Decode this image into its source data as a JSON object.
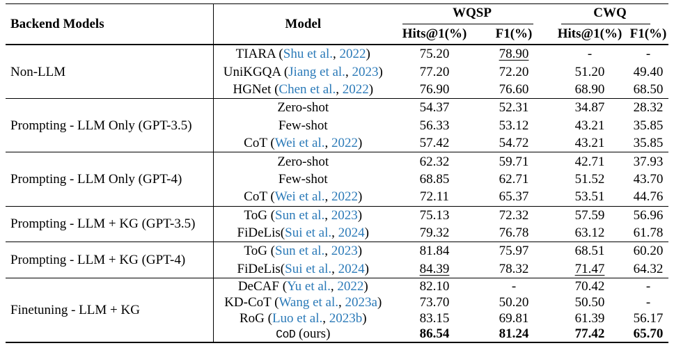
{
  "colors": {
    "text": "#000000",
    "link": "#2b7ab8",
    "rule": "#000000",
    "background": "#ffffff"
  },
  "header": {
    "backend_models": "Backend Models",
    "model": "Model",
    "groups": [
      {
        "label": "WQSP"
      },
      {
        "label": "CWQ"
      }
    ],
    "subheaders": [
      "Hits@1(%)",
      "F1(%)",
      "Hits@1(%)",
      "F1(%)"
    ]
  },
  "sections": [
    {
      "backend": "Non-LLM",
      "compact": false,
      "rows": [
        {
          "model": [
            {
              "t": "TIARA ("
            },
            {
              "t": "Shu et al.",
              "link": true
            },
            {
              "t": ", "
            },
            {
              "t": "2022",
              "link": true
            },
            {
              "t": ")"
            }
          ],
          "values": [
            {
              "v": "75.20"
            },
            {
              "v": "78.90",
              "u": true
            },
            {
              "v": "-"
            },
            {
              "v": "-"
            }
          ]
        },
        {
          "model": [
            {
              "t": "UniKGQA ("
            },
            {
              "t": "Jiang et al.",
              "link": true
            },
            {
              "t": ", "
            },
            {
              "t": "2023",
              "link": true
            },
            {
              "t": ")"
            }
          ],
          "values": [
            {
              "v": "77.20"
            },
            {
              "v": "72.20"
            },
            {
              "v": "51.20"
            },
            {
              "v": "49.40"
            }
          ]
        },
        {
          "model": [
            {
              "t": "HGNet ("
            },
            {
              "t": "Chen et al.",
              "link": true
            },
            {
              "t": ", "
            },
            {
              "t": "2022",
              "link": true
            },
            {
              "t": ")"
            }
          ],
          "values": [
            {
              "v": "76.90"
            },
            {
              "v": "76.60"
            },
            {
              "v": "68.90"
            },
            {
              "v": "68.50"
            }
          ]
        }
      ]
    },
    {
      "backend": "Prompting - LLM Only (GPT-3.5)",
      "compact": false,
      "rows": [
        {
          "model": [
            {
              "t": "Zero-shot"
            }
          ],
          "values": [
            {
              "v": "54.37"
            },
            {
              "v": "52.31"
            },
            {
              "v": "34.87"
            },
            {
              "v": "28.32"
            }
          ]
        },
        {
          "model": [
            {
              "t": "Few-shot"
            }
          ],
          "values": [
            {
              "v": "56.33"
            },
            {
              "v": "53.12"
            },
            {
              "v": "43.21"
            },
            {
              "v": "35.85"
            }
          ]
        },
        {
          "model": [
            {
              "t": "CoT ("
            },
            {
              "t": "Wei et al.",
              "link": true
            },
            {
              "t": ", "
            },
            {
              "t": "2022",
              "link": true
            },
            {
              "t": ")"
            }
          ],
          "values": [
            {
              "v": "57.42"
            },
            {
              "v": "54.72"
            },
            {
              "v": "43.21"
            },
            {
              "v": "35.85"
            }
          ]
        }
      ]
    },
    {
      "backend": "Prompting - LLM Only (GPT-4)",
      "compact": false,
      "rows": [
        {
          "model": [
            {
              "t": "Zero-shot"
            }
          ],
          "values": [
            {
              "v": "62.32"
            },
            {
              "v": "59.71"
            },
            {
              "v": "42.71"
            },
            {
              "v": "37.93"
            }
          ]
        },
        {
          "model": [
            {
              "t": "Few-shot"
            }
          ],
          "values": [
            {
              "v": "68.85"
            },
            {
              "v": "62.71"
            },
            {
              "v": "51.52"
            },
            {
              "v": "43.70"
            }
          ]
        },
        {
          "model": [
            {
              "t": "CoT ("
            },
            {
              "t": "Wei et al.",
              "link": true
            },
            {
              "t": ", "
            },
            {
              "t": "2022",
              "link": true
            },
            {
              "t": ")"
            }
          ],
          "values": [
            {
              "v": "72.11"
            },
            {
              "v": "65.37"
            },
            {
              "v": "53.51"
            },
            {
              "v": "44.76"
            }
          ]
        }
      ]
    },
    {
      "backend": "Prompting - LLM + KG (GPT-3.5)",
      "compact": false,
      "rows": [
        {
          "model": [
            {
              "t": "ToG ("
            },
            {
              "t": "Sun et al.",
              "link": true
            },
            {
              "t": ", "
            },
            {
              "t": "2023",
              "link": true
            },
            {
              "t": ")"
            }
          ],
          "values": [
            {
              "v": "75.13"
            },
            {
              "v": "72.32"
            },
            {
              "v": "57.59"
            },
            {
              "v": "56.96"
            }
          ]
        },
        {
          "model": [
            {
              "t": "FiDeLis("
            },
            {
              "t": "Sui et al.",
              "link": true
            },
            {
              "t": ", "
            },
            {
              "t": "2024",
              "link": true
            },
            {
              "t": ")"
            }
          ],
          "values": [
            {
              "v": "79.32"
            },
            {
              "v": "76.78"
            },
            {
              "v": "63.12"
            },
            {
              "v": "61.78"
            }
          ]
        }
      ]
    },
    {
      "backend": "Prompting - LLM + KG (GPT-4)",
      "compact": false,
      "rows": [
        {
          "model": [
            {
              "t": "ToG ("
            },
            {
              "t": "Sun et al.",
              "link": true
            },
            {
              "t": ", "
            },
            {
              "t": "2023",
              "link": true
            },
            {
              "t": ")"
            }
          ],
          "values": [
            {
              "v": "81.84"
            },
            {
              "v": "75.97"
            },
            {
              "v": "68.51"
            },
            {
              "v": "60.20"
            }
          ]
        },
        {
          "model": [
            {
              "t": "FiDeLis("
            },
            {
              "t": "Sui et al.",
              "link": true
            },
            {
              "t": ", "
            },
            {
              "t": "2024",
              "link": true
            },
            {
              "t": ")"
            }
          ],
          "values": [
            {
              "v": "84.39",
              "u": true
            },
            {
              "v": "78.32"
            },
            {
              "v": "71.47",
              "u": true
            },
            {
              "v": "64.32"
            }
          ]
        }
      ]
    },
    {
      "backend": "Finetuning - LLM + KG",
      "compact": true,
      "rows": [
        {
          "model": [
            {
              "t": "DeCAF ("
            },
            {
              "t": "Yu et al.",
              "link": true
            },
            {
              "t": ", "
            },
            {
              "t": "2022",
              "link": true
            },
            {
              "t": ")"
            }
          ],
          "values": [
            {
              "v": "82.10"
            },
            {
              "v": "-"
            },
            {
              "v": "70.42"
            },
            {
              "v": "-"
            }
          ]
        },
        {
          "model": [
            {
              "t": "KD-CoT ("
            },
            {
              "t": "Wang et al.",
              "link": true
            },
            {
              "t": ", "
            },
            {
              "t": "2023a",
              "link": true
            },
            {
              "t": ")"
            }
          ],
          "values": [
            {
              "v": "73.70"
            },
            {
              "v": "50.20"
            },
            {
              "v": "50.50"
            },
            {
              "v": "-"
            }
          ]
        },
        {
          "model": [
            {
              "t": "RoG ("
            },
            {
              "t": "Luo et al.",
              "link": true
            },
            {
              "t": ", "
            },
            {
              "t": "2023b",
              "link": true
            },
            {
              "t": ")"
            }
          ],
          "values": [
            {
              "v": "83.15"
            },
            {
              "v": "69.81"
            },
            {
              "v": "61.39"
            },
            {
              "v": "56.17"
            }
          ]
        },
        {
          "model": [
            {
              "t": "CoD",
              "mono": true
            },
            {
              "t": " (ours)"
            }
          ],
          "values": [
            {
              "v": "86.54",
              "b": true
            },
            {
              "v": "81.24",
              "b": true
            },
            {
              "v": "77.42",
              "b": true
            },
            {
              "v": "65.70",
              "b": true
            }
          ]
        }
      ]
    }
  ]
}
